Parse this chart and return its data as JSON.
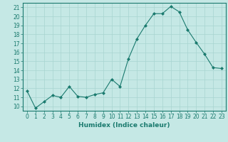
{
  "x": [
    0,
    1,
    2,
    3,
    4,
    5,
    6,
    7,
    8,
    9,
    10,
    11,
    12,
    13,
    14,
    15,
    16,
    17,
    18,
    19,
    20,
    21,
    22,
    23
  ],
  "y": [
    11.7,
    9.8,
    10.5,
    11.2,
    11.0,
    12.2,
    11.1,
    11.0,
    11.3,
    11.5,
    13.0,
    12.2,
    15.3,
    17.5,
    19.0,
    20.3,
    20.3,
    21.1,
    20.5,
    18.5,
    17.1,
    15.8,
    14.3,
    14.2
  ],
  "xlabel": "Humidex (Indice chaleur)",
  "xlim": [
    -0.5,
    23.5
  ],
  "ylim": [
    9.5,
    21.5
  ],
  "yticks": [
    10,
    11,
    12,
    13,
    14,
    15,
    16,
    17,
    18,
    19,
    20,
    21
  ],
  "xticks": [
    0,
    1,
    2,
    3,
    4,
    5,
    6,
    7,
    8,
    9,
    10,
    11,
    12,
    13,
    14,
    15,
    16,
    17,
    18,
    19,
    20,
    21,
    22,
    23
  ],
  "line_color": "#1a7a6e",
  "marker_color": "#1a7a6e",
  "bg_color": "#c5e8e5",
  "grid_color": "#a8d4d0",
  "label_fontsize": 6.5,
  "tick_fontsize": 5.5
}
